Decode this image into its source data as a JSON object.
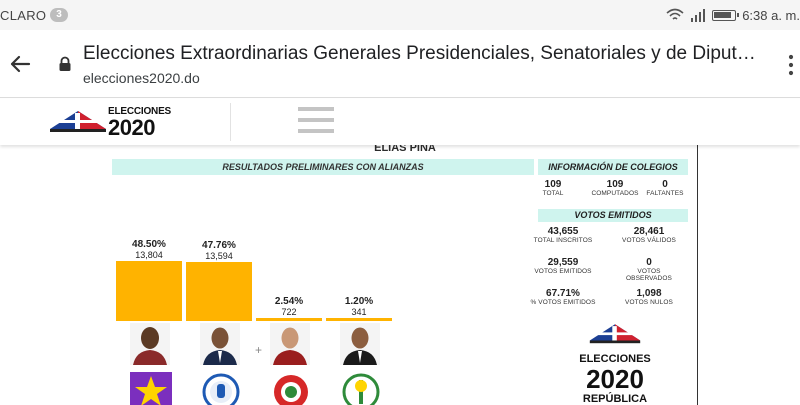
{
  "status_bar": {
    "carrier": "CLARO",
    "notifications": "3",
    "time": "6:38 a. m."
  },
  "browser": {
    "page_title": "Elecciones Extraordinarias Generales Presidenciales, Senatoriales y de Diput…",
    "url": "elecciones2020.do"
  },
  "site_header": {
    "logo_word": "ELECCIONES",
    "logo_year": "2020"
  },
  "report": {
    "region": "ELIAS PIÑA",
    "results_heading": "RESULTADOS PRELIMINARES CON ALIANZAS",
    "colegios_heading": "INFORMACIÓN DE COLEGIOS",
    "colegios": [
      {
        "value": "109",
        "label": "TOTAL"
      },
      {
        "value": "109",
        "label": "COMPUTADOS"
      },
      {
        "value": "0",
        "label": "FALTANTES"
      }
    ],
    "votos_heading": "VOTOS EMITIDOS",
    "votos": [
      {
        "value": "43,655",
        "label": "TOTAL INSCRITOS"
      },
      {
        "value": "28,461",
        "label": "VOTOS VÁLIDOS"
      },
      {
        "value": "29,559",
        "label": "VOTOS EMITIDOS"
      },
      {
        "value": "0",
        "label": "VOTOS OBSERVADOS"
      },
      {
        "value": "67.71%",
        "label": "% VOTOS EMITIDOS"
      },
      {
        "value": "1,098",
        "label": "VOTOS NULOS"
      }
    ],
    "candidates": [
      {
        "percent": "48.50%",
        "votes": "13,804",
        "share": 0.485,
        "party_color": "#7b2fbe"
      },
      {
        "percent": "47.76%",
        "votes": "13,594",
        "share": 0.4776,
        "party_color": "#1e5ab4"
      },
      {
        "percent": "2.54%",
        "votes": "722",
        "share": 0.0254,
        "party_color": "#d62828"
      },
      {
        "percent": "1.20%",
        "votes": "341",
        "share": 0.012,
        "party_color": "#2e8b3a"
      }
    ],
    "footer_logo": {
      "word": "ELECCIONES",
      "year": "2020",
      "sub": "REPÚBLICA"
    }
  },
  "colors": {
    "bar": "#ffb300",
    "banner": "#cff4ee",
    "flag_blue": "#1c3f94",
    "flag_red": "#d0212f"
  }
}
